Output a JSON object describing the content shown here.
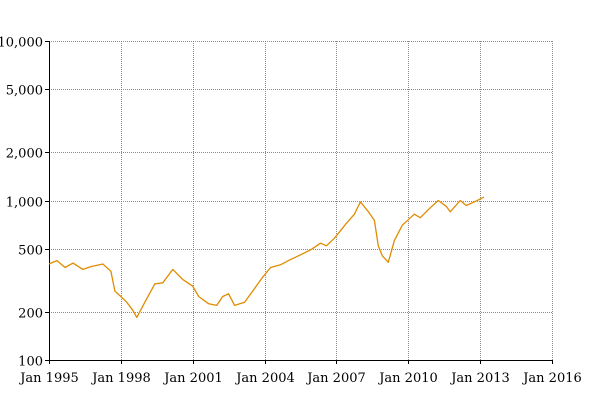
{
  "chart_data": {
    "type": "line",
    "title": "",
    "xlabel": "",
    "ylabel": "",
    "y_scale": "log",
    "ylim": [
      100,
      10000
    ],
    "xlim": [
      "1995-01",
      "2016-01"
    ],
    "grid": true,
    "x_ticks": [
      "Jan 1995",
      "Jan 1998",
      "Jan 2001",
      "Jan 2004",
      "Jan 2007",
      "Jan 2010",
      "Jan 2013",
      "Jan 2016"
    ],
    "y_ticks": [
      {
        "value": 100,
        "label": "100"
      },
      {
        "value": 200,
        "label": "200"
      },
      {
        "value": 500,
        "label": "500"
      },
      {
        "value": 1000,
        "label": "1,000"
      },
      {
        "value": 2000,
        "label": "2,000"
      },
      {
        "value": 5000,
        "label": "5,000"
      },
      {
        "value": 10000,
        "label": "10,000"
      }
    ],
    "colors": {
      "line": "#e08c00",
      "grid": "#8c8c8c",
      "axis": "#000000"
    },
    "series": [
      {
        "points": [
          [
            "1995-01",
            400
          ],
          [
            "1995-05",
            420
          ],
          [
            "1995-09",
            380
          ],
          [
            "1996-01",
            405
          ],
          [
            "1996-06",
            370
          ],
          [
            "1996-10",
            385
          ],
          [
            "1997-04",
            400
          ],
          [
            "1997-08",
            360
          ],
          [
            "1997-10",
            270
          ],
          [
            "1998-01",
            250
          ],
          [
            "1998-04",
            230
          ],
          [
            "1998-07",
            205
          ],
          [
            "1998-09",
            185
          ],
          [
            "1999-01",
            230
          ],
          [
            "1999-06",
            300
          ],
          [
            "1999-10",
            305
          ],
          [
            "2000-03",
            370
          ],
          [
            "2000-08",
            320
          ],
          [
            "2001-01",
            290
          ],
          [
            "2001-04",
            250
          ],
          [
            "2001-09",
            225
          ],
          [
            "2002-01",
            220
          ],
          [
            "2002-04",
            250
          ],
          [
            "2002-07",
            260
          ],
          [
            "2002-10",
            220
          ],
          [
            "2003-03",
            230
          ],
          [
            "2003-07",
            270
          ],
          [
            "2003-12",
            330
          ],
          [
            "2004-04",
            380
          ],
          [
            "2004-09",
            395
          ],
          [
            "2005-01",
            420
          ],
          [
            "2005-06",
            450
          ],
          [
            "2005-12",
            490
          ],
          [
            "2006-05",
            540
          ],
          [
            "2006-08",
            520
          ],
          [
            "2006-12",
            580
          ],
          [
            "2007-06",
            720
          ],
          [
            "2007-10",
            820
          ],
          [
            "2008-01",
            980
          ],
          [
            "2008-05",
            850
          ],
          [
            "2008-08",
            750
          ],
          [
            "2008-10",
            520
          ],
          [
            "2008-12",
            450
          ],
          [
            "2009-03",
            410
          ],
          [
            "2009-06",
            560
          ],
          [
            "2009-10",
            700
          ],
          [
            "2010-04",
            820
          ],
          [
            "2010-07",
            780
          ],
          [
            "2010-12",
            900
          ],
          [
            "2011-04",
            1000
          ],
          [
            "2011-08",
            920
          ],
          [
            "2011-10",
            850
          ],
          [
            "2012-03",
            1000
          ],
          [
            "2012-06",
            930
          ],
          [
            "2012-10",
            980
          ],
          [
            "2013-03",
            1050
          ]
        ]
      }
    ]
  }
}
